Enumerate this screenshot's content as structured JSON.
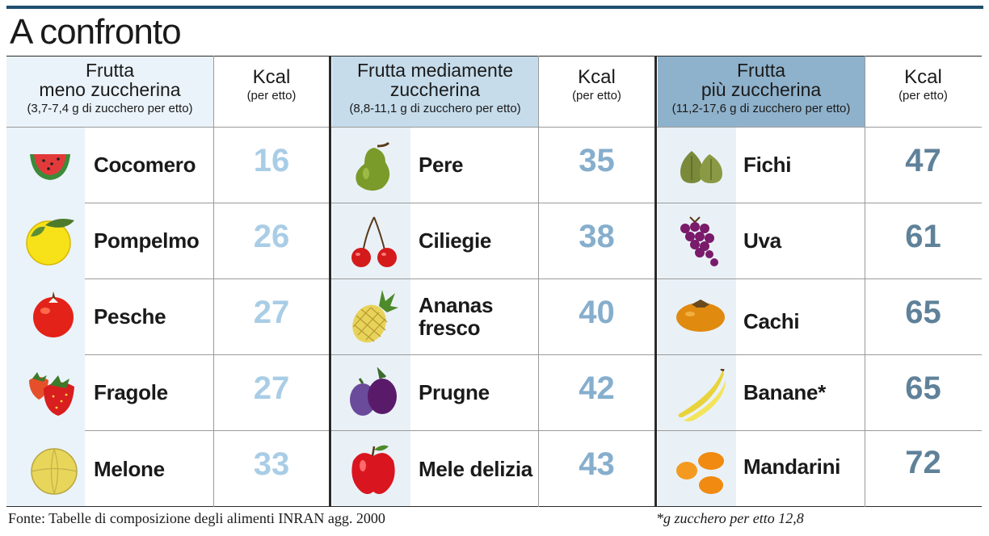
{
  "title": "A confronto",
  "groups": [
    {
      "header": {
        "line1": "Frutta",
        "line2": "meno zuccherina",
        "line3": "(3,7-7,4 g di zucchero per etto)"
      },
      "kcal_header": {
        "label": "Kcal",
        "sub": "(per etto)"
      },
      "header_bg": "#eaf3f9",
      "icon_bg": "#eaf3f9",
      "value_color": "#a9cde6",
      "rows": [
        {
          "name": "Cocomero",
          "kcal": "16",
          "icon": "watermelon-icon"
        },
        {
          "name": "Pompelmo",
          "kcal": "26",
          "icon": "grapefruit-icon"
        },
        {
          "name": "Pesche",
          "kcal": "27",
          "icon": "peach-icon"
        },
        {
          "name": "Fragole",
          "kcal": "27",
          "icon": "strawberry-icon"
        },
        {
          "name": "Melone",
          "kcal": "33",
          "icon": "melon-icon"
        }
      ]
    },
    {
      "header": {
        "line1": "Frutta mediamente",
        "line2": "zuccherina",
        "line3": "(8,8-11,1 g di zucchero per etto)"
      },
      "kcal_header": {
        "label": "Kcal",
        "sub": "(per etto)"
      },
      "header_bg": "#c6dceb",
      "icon_bg": "#e9f1f7",
      "value_color": "#86aecd",
      "rows": [
        {
          "name": "Pere",
          "kcal": "35",
          "icon": "pear-icon"
        },
        {
          "name": "Ciliegie",
          "kcal": "38",
          "icon": "cherries-icon"
        },
        {
          "name": "Ananas fresco",
          "name_l1": "Ananas",
          "name_l2": "fresco",
          "kcal": "40",
          "icon": "pineapple-icon"
        },
        {
          "name": "Prugne",
          "kcal": "42",
          "icon": "plums-icon"
        },
        {
          "name": "Mele delizia",
          "kcal": "43",
          "icon": "apple-icon"
        }
      ]
    },
    {
      "header": {
        "line1": "Frutta",
        "line2": "più zuccherina",
        "line3": "(11,2-17,6  g di zucchero per etto)"
      },
      "kcal_header": {
        "label": "Kcal",
        "sub": "(per etto)"
      },
      "header_bg": "#8fb2cc",
      "icon_bg": "#e9f1f7",
      "value_color": "#5f8199",
      "rows": [
        {
          "name": "Fichi",
          "kcal": "47",
          "icon": "figs-icon"
        },
        {
          "name": "Uva",
          "kcal": "61",
          "icon": "grapes-icon"
        },
        {
          "name": "Cachi",
          "kcal": "65",
          "icon": "persimmon-icon"
        },
        {
          "name": "Banane*",
          "kcal": "65",
          "icon": "bananas-icon"
        },
        {
          "name": "Mandarini",
          "kcal": "72",
          "icon": "mandarins-icon"
        }
      ]
    }
  ],
  "footer": {
    "source": "Fonte: Tabelle di composizione degli alimenti INRAN agg. 2000",
    "note": "*g zucchero per etto 12,8"
  }
}
